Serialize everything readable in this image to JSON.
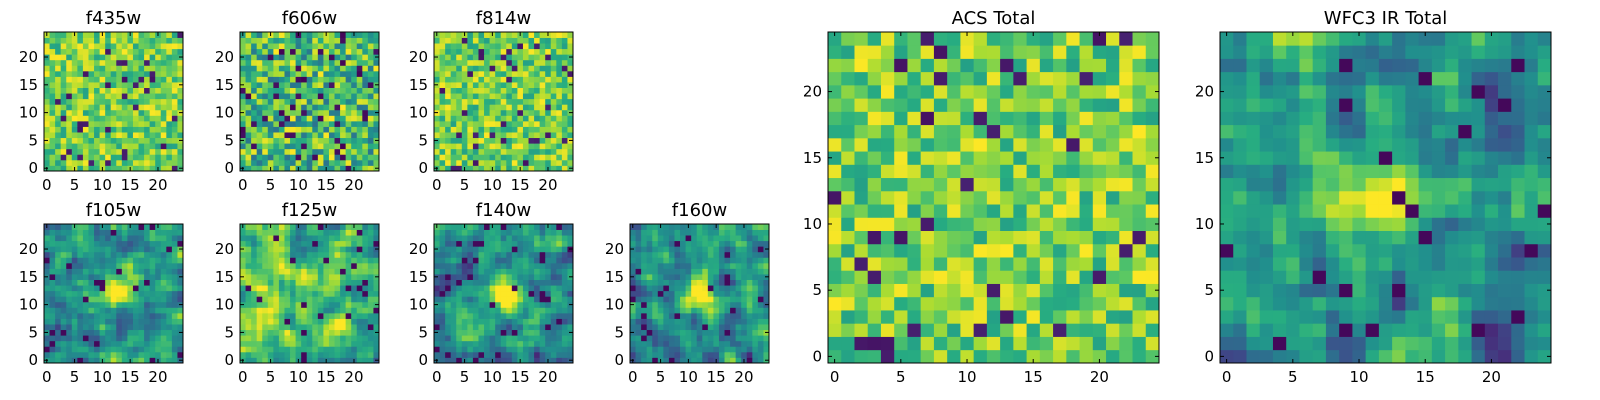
{
  "figure": {
    "background": "#ffffff"
  },
  "chart_data": [
    {
      "type": "heatmap",
      "id": "f435w",
      "title": "f435w",
      "grid_size": 25,
      "value_range": [
        0,
        1
      ],
      "colormap": "viridis",
      "seed": 11,
      "xticks": [
        "0",
        "5",
        "10",
        "15",
        "20"
      ],
      "yticks": [
        "0",
        "5",
        "10",
        "15",
        "20"
      ],
      "tick_values": [
        0,
        5,
        10,
        15,
        20
      ],
      "tone": "bright-noise"
    },
    {
      "type": "heatmap",
      "id": "f606w",
      "title": "f606w",
      "grid_size": 25,
      "value_range": [
        0,
        1
      ],
      "colormap": "viridis",
      "seed": 23,
      "xticks": [
        "0",
        "5",
        "10",
        "15",
        "20"
      ],
      "yticks": [
        "0",
        "5",
        "10",
        "15",
        "20"
      ],
      "tick_values": [
        0,
        5,
        10,
        15,
        20
      ],
      "tone": "noise"
    },
    {
      "type": "heatmap",
      "id": "f814w",
      "title": "f814w",
      "grid_size": 25,
      "value_range": [
        0,
        1
      ],
      "colormap": "viridis",
      "seed": 37,
      "xticks": [
        "0",
        "5",
        "10",
        "15",
        "20"
      ],
      "yticks": [
        "0",
        "5",
        "10",
        "15",
        "20"
      ],
      "tick_values": [
        0,
        5,
        10,
        15,
        20
      ],
      "tone": "bright-noise"
    },
    {
      "type": "heatmap",
      "id": "f105w",
      "title": "f105w",
      "grid_size": 25,
      "value_range": [
        0,
        1
      ],
      "colormap": "viridis",
      "seed": 41,
      "xticks": [
        "0",
        "5",
        "10",
        "15",
        "20"
      ],
      "yticks": [
        "0",
        "5",
        "10",
        "15",
        "20"
      ],
      "tick_values": [
        0,
        5,
        10,
        15,
        20
      ],
      "tone": "source",
      "source_center": [
        13,
        13
      ]
    },
    {
      "type": "heatmap",
      "id": "f125w",
      "title": "f125w",
      "grid_size": 25,
      "value_range": [
        0,
        1
      ],
      "colormap": "viridis",
      "seed": 53,
      "xticks": [
        "0",
        "5",
        "10",
        "15",
        "20"
      ],
      "yticks": [
        "0",
        "5",
        "10",
        "15",
        "20"
      ],
      "tick_values": [
        0,
        5,
        10,
        15,
        20
      ],
      "tone": "smooth-bright"
    },
    {
      "type": "heatmap",
      "id": "f140w",
      "title": "f140w",
      "grid_size": 25,
      "value_range": [
        0,
        1
      ],
      "colormap": "viridis",
      "seed": 67,
      "xticks": [
        "0",
        "5",
        "10",
        "15",
        "20"
      ],
      "yticks": [
        "0",
        "5",
        "10",
        "15",
        "20"
      ],
      "tick_values": [
        0,
        5,
        10,
        15,
        20
      ],
      "tone": "source",
      "source_center": [
        12,
        12
      ]
    },
    {
      "type": "heatmap",
      "id": "f160w",
      "title": "f160w",
      "grid_size": 25,
      "value_range": [
        0,
        1
      ],
      "colormap": "viridis",
      "seed": 79,
      "xticks": [
        "0",
        "5",
        "10",
        "15",
        "20"
      ],
      "yticks": [
        "0",
        "5",
        "10",
        "15",
        "20"
      ],
      "tick_values": [
        0,
        5,
        10,
        15,
        20
      ],
      "tone": "source",
      "source_center": [
        12,
        12
      ]
    },
    {
      "type": "heatmap",
      "id": "acs-total",
      "title": "ACS Total",
      "grid_size": 25,
      "value_range": [
        0,
        1
      ],
      "colormap": "viridis",
      "seed": 97,
      "xticks": [
        "0",
        "5",
        "10",
        "15",
        "20"
      ],
      "yticks": [
        "0",
        "5",
        "10",
        "15",
        "20"
      ],
      "tick_values": [
        0,
        5,
        10,
        15,
        20
      ],
      "tone": "bright-noise"
    },
    {
      "type": "heatmap",
      "id": "wfc3-ir-total",
      "title": "WFC3 IR Total",
      "grid_size": 25,
      "value_range": [
        0,
        1
      ],
      "colormap": "viridis",
      "seed": 131,
      "xticks": [
        "0",
        "5",
        "10",
        "15",
        "20"
      ],
      "yticks": [
        "0",
        "5",
        "10",
        "15",
        "20"
      ],
      "tick_values": [
        0,
        5,
        10,
        15,
        20
      ],
      "tone": "source",
      "source_center": [
        12,
        12
      ]
    }
  ]
}
